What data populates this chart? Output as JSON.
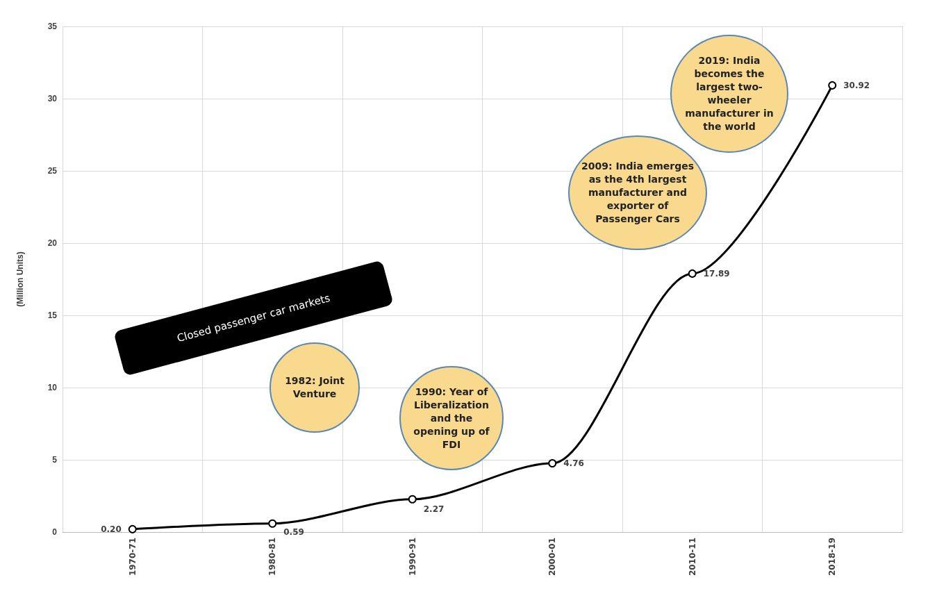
{
  "chart_data": {
    "type": "line",
    "ylabel": "(Million Units)",
    "categories": [
      "1970-71",
      "1980-81",
      "1990-91",
      "2000-01",
      "2010-11",
      "2018-19"
    ],
    "series": [
      {
        "color": "#000000",
        "values": [
          0.2,
          0.59,
          2.27,
          4.76,
          17.89,
          30.92
        ],
        "value_labels": [
          "0.20",
          "0.59",
          "2.27",
          "4.76",
          "17.89",
          "30.92"
        ]
      }
    ],
    "ylim": [
      0,
      35
    ],
    "yticks": [
      0,
      5,
      10,
      15,
      20,
      25,
      30,
      35
    ],
    "grid": true,
    "marker": "circle",
    "line_style": "solid",
    "annotations": [
      "2019: India becomes the largest two-wheeler manufacturer in the world",
      "2009: India emerges as the 4th largest manufacturer and exporter of Passenger Cars",
      "1990: Year of Liberalization and the opening up of FDI",
      "1982: Joint Venture",
      "Closed passenger car markets"
    ]
  }
}
